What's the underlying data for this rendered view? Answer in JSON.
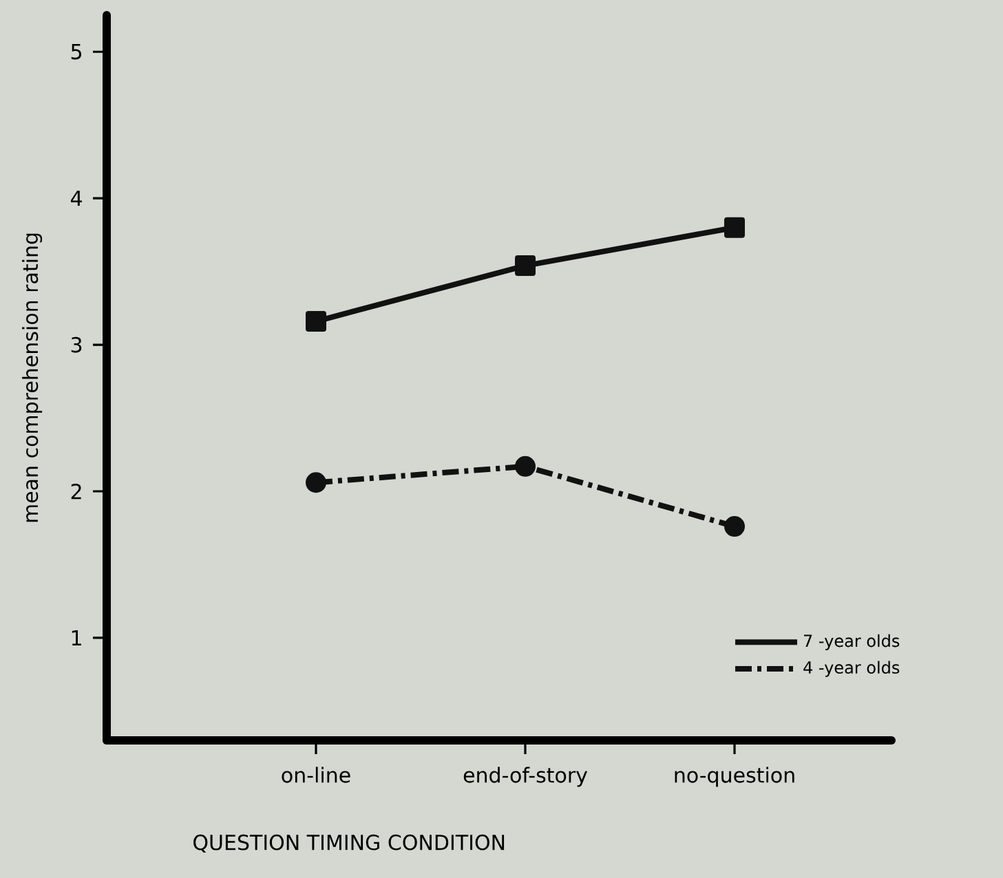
{
  "chart_data": {
    "type": "line",
    "xlabel": "QUESTION TIMING CONDITION",
    "ylabel": "mean comprehension rating",
    "categories": [
      "on-line",
      "end-of-story",
      "no-question"
    ],
    "series": [
      {
        "name": "7 -year olds",
        "color": "#111111",
        "values": [
          3.16,
          3.54,
          3.8
        ],
        "marker": "square",
        "line_style": "solid"
      },
      {
        "name": "4 -year olds",
        "color": "#111111",
        "values": [
          2.06,
          2.17,
          1.76
        ],
        "marker": "circle",
        "line_style": "dashdot"
      }
    ],
    "ylim": [
      0.3,
      5.25
    ],
    "yticks": [
      1,
      2,
      3,
      4,
      5
    ],
    "grid": false,
    "legend": "bottom right"
  }
}
